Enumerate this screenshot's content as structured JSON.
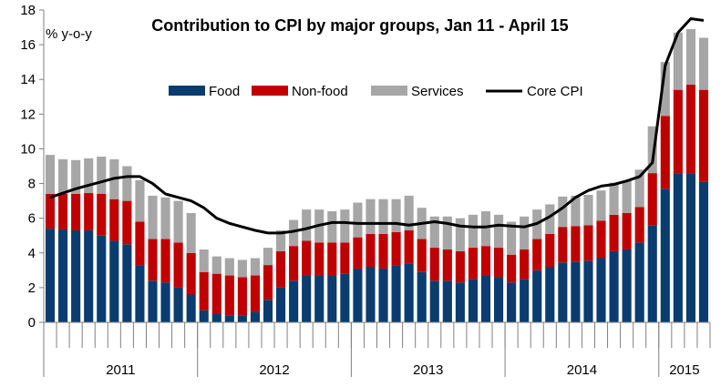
{
  "chart_data": {
    "type": "bar",
    "stacked": true,
    "title": "Contribution to CPI by major groups, Jan 11 - April 15",
    "unit_label": "% y-o-y",
    "ylim": [
      0,
      18
    ],
    "yticks": [
      0,
      2,
      4,
      6,
      8,
      10,
      12,
      14,
      16,
      18
    ],
    "grid": false,
    "legend_position": "top-center",
    "year_groups": [
      {
        "label": "2011",
        "months": 12
      },
      {
        "label": "2012",
        "months": 12
      },
      {
        "label": "2013",
        "months": 12
      },
      {
        "label": "2014",
        "months": 12
      },
      {
        "label": "2015",
        "months": 4
      }
    ],
    "months": [
      "2011-01",
      "2011-02",
      "2011-03",
      "2011-04",
      "2011-05",
      "2011-06",
      "2011-07",
      "2011-08",
      "2011-09",
      "2011-10",
      "2011-11",
      "2011-12",
      "2012-01",
      "2012-02",
      "2012-03",
      "2012-04",
      "2012-05",
      "2012-06",
      "2012-07",
      "2012-08",
      "2012-09",
      "2012-10",
      "2012-11",
      "2012-12",
      "2013-01",
      "2013-02",
      "2013-03",
      "2013-04",
      "2013-05",
      "2013-06",
      "2013-07",
      "2013-08",
      "2013-09",
      "2013-10",
      "2013-11",
      "2013-12",
      "2014-01",
      "2014-02",
      "2014-03",
      "2014-04",
      "2014-05",
      "2014-06",
      "2014-07",
      "2014-08",
      "2014-09",
      "2014-10",
      "2014-11",
      "2014-12",
      "2015-01",
      "2015-02",
      "2015-03",
      "2015-04"
    ],
    "series": [
      {
        "name": "Food",
        "kind": "bar",
        "color": "#0b3c70",
        "values": [
          5.4,
          5.35,
          5.3,
          5.3,
          5.0,
          4.7,
          4.5,
          3.3,
          2.4,
          2.3,
          2.0,
          1.6,
          0.7,
          0.5,
          0.4,
          0.4,
          0.6,
          1.3,
          2.0,
          2.4,
          2.7,
          2.7,
          2.7,
          2.8,
          3.1,
          3.2,
          3.1,
          3.3,
          3.4,
          2.9,
          2.4,
          2.4,
          2.3,
          2.5,
          2.7,
          2.6,
          2.3,
          2.5,
          3.0,
          3.2,
          3.45,
          3.5,
          3.55,
          3.7,
          4.1,
          4.2,
          4.6,
          5.6,
          7.7,
          8.6,
          8.6,
          8.1
        ]
      },
      {
        "name": "Non-food",
        "kind": "bar",
        "color": "#c00000",
        "values": [
          2.0,
          2.05,
          2.1,
          2.15,
          2.4,
          2.4,
          2.5,
          2.5,
          2.4,
          2.5,
          2.6,
          2.4,
          2.2,
          2.3,
          2.3,
          2.2,
          2.1,
          2.0,
          2.1,
          2.0,
          2.0,
          1.9,
          1.9,
          1.8,
          1.8,
          1.9,
          2.0,
          1.9,
          1.9,
          1.9,
          1.9,
          1.8,
          1.8,
          1.8,
          1.7,
          1.7,
          1.6,
          1.7,
          1.8,
          1.9,
          2.05,
          2.05,
          2.05,
          2.15,
          2.1,
          2.1,
          2.05,
          3.0,
          4.2,
          4.8,
          5.1,
          5.3
        ]
      },
      {
        "name": "Services",
        "kind": "bar",
        "color": "#a6a6a6",
        "values": [
          2.25,
          2.0,
          1.95,
          2.0,
          2.15,
          2.3,
          2.0,
          2.4,
          2.5,
          2.4,
          2.4,
          2.3,
          1.3,
          1.0,
          1.0,
          1.0,
          1.0,
          1.0,
          1.2,
          1.5,
          1.8,
          1.9,
          1.8,
          1.9,
          2.0,
          2.0,
          2.0,
          1.9,
          2.0,
          1.8,
          1.8,
          1.9,
          1.9,
          1.9,
          2.0,
          1.9,
          1.9,
          1.9,
          1.7,
          1.7,
          1.75,
          1.75,
          1.75,
          1.75,
          1.85,
          1.85,
          2.15,
          2.7,
          3.1,
          3.3,
          3.2,
          3.0
        ]
      },
      {
        "name": "Core CPI",
        "kind": "line",
        "color": "#000000",
        "values": [
          7.2,
          7.45,
          7.7,
          7.9,
          8.1,
          8.3,
          8.4,
          8.4,
          8.0,
          7.4,
          7.2,
          7.0,
          6.6,
          6.0,
          5.7,
          5.5,
          5.3,
          5.15,
          5.15,
          5.25,
          5.4,
          5.6,
          5.75,
          5.75,
          5.7,
          5.7,
          5.7,
          5.7,
          5.6,
          5.7,
          5.8,
          5.7,
          5.55,
          5.5,
          5.5,
          5.6,
          5.55,
          5.5,
          5.7,
          6.1,
          6.6,
          7.2,
          7.6,
          7.85,
          7.95,
          8.15,
          8.4,
          9.2,
          14.8,
          16.7,
          17.5,
          17.4
        ]
      }
    ]
  }
}
